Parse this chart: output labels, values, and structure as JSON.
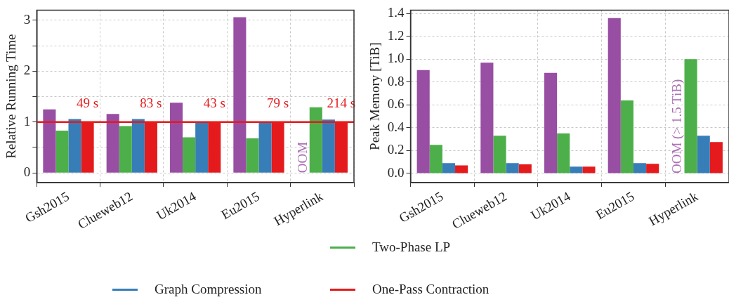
{
  "chart_data": [
    {
      "type": "bar",
      "ylabel": "Relative Running Time",
      "categories": [
        "Gsh2015",
        "Clueweb12",
        "Uk2014",
        "Eu2015",
        "Hyperlink"
      ],
      "series": [
        {
          "color": "#984ea3",
          "values": [
            1.25,
            1.16,
            1.38,
            3.06,
            null
          ]
        },
        {
          "name": "Two-Phase LP",
          "color": "#4daf4a",
          "values": [
            0.83,
            0.92,
            0.7,
            0.68,
            1.29
          ]
        },
        {
          "name": "Graph Compression",
          "color": "#377eb8",
          "values": [
            1.06,
            1.06,
            1.0,
            1.0,
            1.05
          ]
        },
        {
          "name": "One-Pass Contraction",
          "color": "#e41a1c",
          "values": [
            1,
            1,
            1,
            1,
            1
          ]
        }
      ],
      "ylim": [
        -0.19,
        3.2
      ],
      "yticks": [
        0,
        {
          "value": 0.5,
          "label": null
        },
        1,
        {
          "value": 1.5,
          "label": null
        },
        2,
        {
          "value": 2.5,
          "label": null
        },
        3
      ],
      "ref_lines": [
        {
          "axis": "y",
          "value": 1,
          "color": "#e41a1c"
        }
      ],
      "annotations": [
        {
          "text": "49 s",
          "x": "Gsh2015",
          "y": 1
        },
        {
          "text": "83 s",
          "x": "Clueweb12",
          "y": 1
        },
        {
          "text": "43 s",
          "x": "Uk2014",
          "y": 1
        },
        {
          "text": "79 s",
          "x": "Eu2015",
          "y": 1
        },
        {
          "text": "214 s",
          "x": "Hyperlink",
          "y": 1
        },
        {
          "text": "OOM",
          "x": "Hyperlink",
          "y": 0
        }
      ],
      "grid": true,
      "legend": "bottom"
    },
    {
      "type": "bar",
      "ylabel": "Peak Memory [TiB]",
      "categories": [
        "Gsh2015",
        "Clueweb12",
        "Uk2014",
        "Eu2015",
        "Hyperlink"
      ],
      "series": [
        {
          "color": "#984ea3",
          "values": [
            0.905,
            0.97,
            0.88,
            1.36,
            null
          ]
        },
        {
          "color": "#4daf4a",
          "values": [
            0.25,
            0.33,
            0.35,
            0.64,
            1.0
          ]
        },
        {
          "color": "#377eb8",
          "values": [
            0.09,
            0.09,
            0.06,
            0.09,
            0.33
          ]
        },
        {
          "color": "#e41a1c",
          "values": [
            0.07,
            0.08,
            0.06,
            0.085,
            0.275
          ]
        }
      ],
      "ylim": [
        -0.08,
        1.43
      ],
      "yticks": [
        {
          "value": 0,
          "label": "0.0"
        },
        {
          "value": 0.2,
          "label": "0.2"
        },
        {
          "value": 0.4,
          "label": "0.4"
        },
        {
          "value": 0.6,
          "label": "0.6"
        },
        {
          "value": 0.8,
          "label": "0.8"
        },
        {
          "value": 1,
          "label": "1.0"
        },
        {
          "value": 1.2,
          "label": "1.2"
        },
        {
          "value": 1.4,
          "label": "1.4"
        }
      ],
      "annotations": [
        {
          "text": "OOM (> 1.5 TiB)",
          "x": "Hyperlink",
          "y": 0
        }
      ],
      "grid": true
    }
  ]
}
